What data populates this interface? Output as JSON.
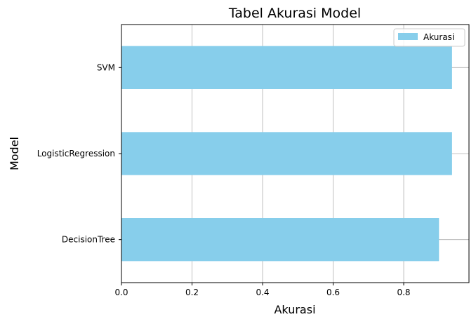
{
  "chart_data": {
    "type": "bar",
    "orientation": "horizontal",
    "title": "Tabel Akurasi Model",
    "xlabel": "Akurasi",
    "ylabel": "Model",
    "categories": [
      "DecisionTree",
      "LogisticRegression",
      "SVM"
    ],
    "series": [
      {
        "name": "Akurasi",
        "values": [
          0.9,
          0.937,
          0.937
        ],
        "color": "#87ceeb"
      }
    ],
    "xlim": [
      0,
      0.985
    ],
    "xticks": [
      0.0,
      0.2,
      0.4,
      0.6,
      0.8
    ],
    "xtick_labels": [
      "0.0",
      "0.2",
      "0.4",
      "0.6",
      "0.8"
    ],
    "grid": true,
    "legend_position": "top-right"
  }
}
